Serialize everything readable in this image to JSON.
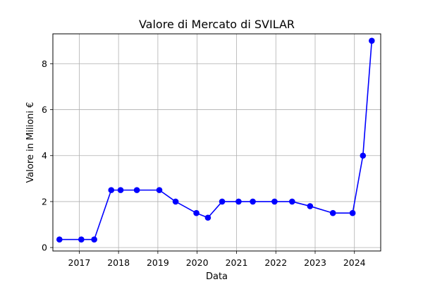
{
  "chart_data": {
    "type": "line",
    "title": "Valore di Mercato di SVILAR",
    "xlabel": "Data",
    "ylabel": "Valore in Milioni €",
    "x_ticks": [
      "2017",
      "2018",
      "2019",
      "2020",
      "2021",
      "2022",
      "2023",
      "2024"
    ],
    "y_ticks": [
      "0",
      "2",
      "4",
      "6",
      "8"
    ],
    "xlim": [
      "2016-05-01",
      "2024-09-01"
    ],
    "ylim": [
      -0.15,
      9.3
    ],
    "grid": true,
    "color": "#0000ff",
    "series": [
      {
        "x": [
          "2016-07-01",
          "2017-01-20",
          "2017-05-20",
          "2017-10-25",
          "2018-01-20",
          "2018-06-20",
          "2019-01-15",
          "2019-06-15",
          "2019-12-25",
          "2020-04-10",
          "2020-08-20",
          "2021-01-20",
          "2021-06-01",
          "2021-12-20",
          "2022-06-01",
          "2022-11-15",
          "2023-06-15",
          "2023-12-15",
          "2024-03-20",
          "2024-06-10"
        ],
        "values": [
          0.35,
          0.35,
          0.35,
          2.5,
          2.5,
          2.5,
          2.5,
          2.0,
          1.5,
          1.3,
          2.0,
          2.0,
          2.0,
          2.0,
          2.0,
          1.8,
          1.5,
          1.5,
          4.0,
          9.0
        ]
      }
    ]
  }
}
